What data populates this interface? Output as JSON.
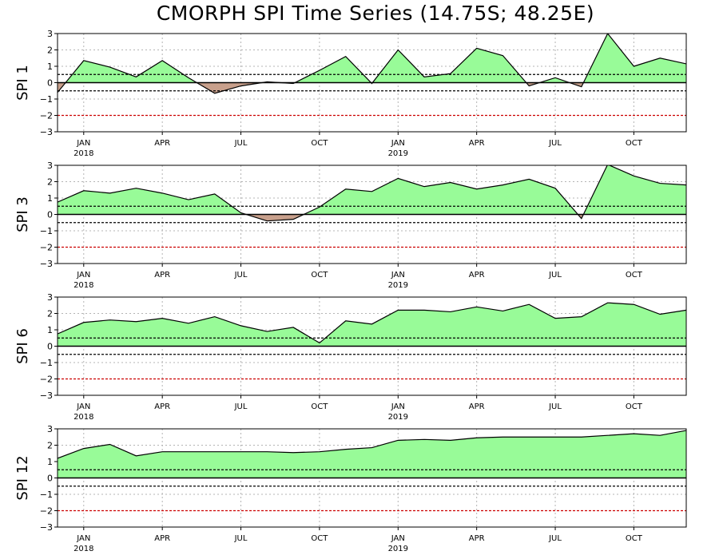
{
  "title": "CMORPH SPI Time Series (14.75S; 48.25E)",
  "colors": {
    "positive_fill": "#98fb98",
    "negative_fill": "#c8a08c",
    "line": "#000000",
    "wet_threshold": "#000000",
    "drought_threshold": "#cc0000",
    "grid": "#b4b4b4"
  },
  "x_axis": {
    "month_ticks": [
      "JAN",
      "APR",
      "JUL",
      "OCT",
      "JAN",
      "APR",
      "JUL",
      "OCT"
    ],
    "year_labels": [
      "2018",
      "2019"
    ]
  },
  "chart_data": [
    {
      "type": "area",
      "ylabel": "SPI 1",
      "ylim": [
        -3,
        3
      ],
      "yticks": [
        "3",
        "2",
        "1",
        "0",
        "−1",
        "−2",
        "−3"
      ],
      "reference_lines": [
        0.5,
        -0.5,
        -2
      ],
      "grid": true,
      "x": [
        "2017-12",
        "2018-01",
        "2018-02",
        "2018-03",
        "2018-04",
        "2018-05",
        "2018-06",
        "2018-07",
        "2018-08",
        "2018-09",
        "2018-10",
        "2018-11",
        "2018-12",
        "2019-01",
        "2019-02",
        "2019-03",
        "2019-04",
        "2019-05",
        "2019-06",
        "2019-07",
        "2019-08",
        "2019-09",
        "2019-10",
        "2019-11",
        "2019-12"
      ],
      "values": [
        -0.6,
        1.35,
        0.95,
        0.35,
        1.35,
        0.3,
        -0.65,
        -0.2,
        0.05,
        -0.05,
        0.75,
        1.6,
        -0.05,
        2.0,
        0.35,
        0.55,
        2.1,
        1.65,
        -0.2,
        0.3,
        -0.25,
        3.0,
        1.0,
        1.5,
        1.15
      ]
    },
    {
      "type": "area",
      "ylabel": "SPI 3",
      "ylim": [
        -3,
        3
      ],
      "yticks": [
        "3",
        "2",
        "1",
        "0",
        "−1",
        "−2",
        "−3"
      ],
      "reference_lines": [
        0.5,
        -0.5,
        -2
      ],
      "grid": true,
      "x": [
        "2017-12",
        "2018-01",
        "2018-02",
        "2018-03",
        "2018-04",
        "2018-05",
        "2018-06",
        "2018-07",
        "2018-08",
        "2018-09",
        "2018-10",
        "2018-11",
        "2018-12",
        "2019-01",
        "2019-02",
        "2019-03",
        "2019-04",
        "2019-05",
        "2019-06",
        "2019-07",
        "2019-08",
        "2019-09",
        "2019-10",
        "2019-11",
        "2019-12"
      ],
      "values": [
        0.75,
        1.45,
        1.3,
        1.6,
        1.3,
        0.9,
        1.25,
        0.1,
        -0.4,
        -0.3,
        0.45,
        1.55,
        1.4,
        2.2,
        1.7,
        1.95,
        1.55,
        1.8,
        2.15,
        1.6,
        -0.25,
        3.05,
        2.35,
        1.9,
        1.8
      ]
    },
    {
      "type": "area",
      "ylabel": "SPI 6",
      "ylim": [
        -3,
        3
      ],
      "yticks": [
        "3",
        "2",
        "1",
        "0",
        "−1",
        "−2",
        "−3"
      ],
      "reference_lines": [
        0.5,
        -0.5,
        -2
      ],
      "grid": true,
      "x": [
        "2017-12",
        "2018-01",
        "2018-02",
        "2018-03",
        "2018-04",
        "2018-05",
        "2018-06",
        "2018-07",
        "2018-08",
        "2018-09",
        "2018-10",
        "2018-11",
        "2018-12",
        "2019-01",
        "2019-02",
        "2019-03",
        "2019-04",
        "2019-05",
        "2019-06",
        "2019-07",
        "2019-08",
        "2019-09",
        "2019-10",
        "2019-11",
        "2019-12"
      ],
      "values": [
        0.75,
        1.45,
        1.6,
        1.5,
        1.7,
        1.4,
        1.8,
        1.25,
        0.9,
        1.15,
        0.2,
        1.55,
        1.35,
        2.2,
        2.2,
        2.1,
        2.4,
        2.15,
        2.55,
        1.7,
        1.8,
        2.65,
        2.55,
        1.95,
        2.2
      ]
    },
    {
      "type": "area",
      "ylabel": "SPI 12",
      "ylim": [
        -3,
        3
      ],
      "yticks": [
        "3",
        "2",
        "1",
        "0",
        "−1",
        "−2",
        "−3"
      ],
      "reference_lines": [
        0.5,
        -0.5,
        -2
      ],
      "grid": true,
      "x": [
        "2017-12",
        "2018-01",
        "2018-02",
        "2018-03",
        "2018-04",
        "2018-05",
        "2018-06",
        "2018-07",
        "2018-08",
        "2018-09",
        "2018-10",
        "2018-11",
        "2018-12",
        "2019-01",
        "2019-02",
        "2019-03",
        "2019-04",
        "2019-05",
        "2019-06",
        "2019-07",
        "2019-08",
        "2019-09",
        "2019-10",
        "2019-11",
        "2019-12"
      ],
      "values": [
        1.2,
        1.8,
        2.05,
        1.35,
        1.6,
        1.6,
        1.6,
        1.6,
        1.6,
        1.55,
        1.6,
        1.75,
        1.85,
        2.3,
        2.35,
        2.3,
        2.45,
        2.5,
        2.5,
        2.5,
        2.5,
        2.6,
        2.7,
        2.6,
        2.9
      ]
    }
  ]
}
